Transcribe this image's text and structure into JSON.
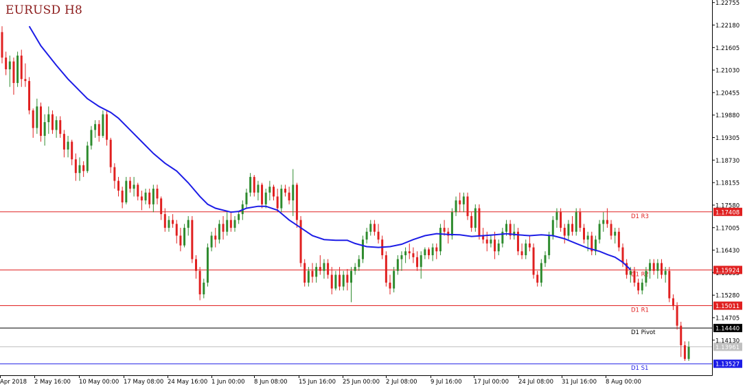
{
  "chart_data": {
    "type": "candlestick",
    "title": "EURUSD H8",
    "colors": {
      "bull": "#2e8b2e",
      "bear": "#e02020",
      "moving_average": "#1c1ce6",
      "resistance": "#e02020",
      "pivot": "#000000",
      "support": "#1c1ce6",
      "current_price": "#c0c0c0",
      "axis": "#000000"
    },
    "y_axis": {
      "range": [
        1.13233,
        1.2282
      ],
      "tick_labels": [
        "1.22755",
        "1.22180",
        "1.21605",
        "1.21030",
        "1.20455",
        "1.19880",
        "1.19305",
        "1.18730",
        "1.18155",
        "1.17580",
        "1.17005",
        "1.16430",
        "1.15855",
        "1.15280",
        "1.14705",
        "1.14130"
      ]
    },
    "x_axis": {
      "tick_labels": [
        "Apr 2018",
        "2 May 16:00",
        "10 May 00:00",
        "17 May 08:00",
        "24 May 16:00",
        "1 Jun 00:00",
        "8 Jun 08:00",
        "15 Jun 16:00",
        "25 Jun 00:00",
        "2 Jul 08:00",
        "9 Jul 16:00",
        "17 Jul 00:00",
        "24 Jul 08:00",
        "31 Jul 16:00",
        "8 Aug 00:00"
      ]
    },
    "levels": [
      {
        "name": "D1 R3",
        "value": 1.17408,
        "label": "1.17408",
        "kind": "resistance"
      },
      {
        "name": "D1 R2",
        "value": 1.15924,
        "label": "1.15924",
        "kind": "resistance"
      },
      {
        "name": "D1 R1",
        "value": 1.15011,
        "label": "1.15011",
        "kind": "resistance"
      },
      {
        "name": "D1 Pivot",
        "value": 1.1444,
        "label": "1.14440",
        "kind": "pivot"
      },
      {
        "name": "D1 S1",
        "value": 1.13527,
        "label": "1.13527",
        "kind": "support"
      }
    ],
    "current_price": {
      "value": 1.13961,
      "label": "1.13961"
    },
    "candles": [
      [
        1.22,
        1.2215,
        1.212,
        1.2135
      ],
      [
        1.2135,
        1.215,
        1.209,
        1.2105
      ],
      [
        1.2105,
        1.214,
        1.206,
        1.2125
      ],
      [
        1.2125,
        1.2135,
        1.204,
        1.207
      ],
      [
        1.207,
        1.215,
        1.206,
        1.214
      ],
      [
        1.214,
        1.2155,
        1.206,
        1.208
      ],
      [
        1.208,
        1.212,
        1.206,
        1.2075
      ],
      [
        1.2075,
        1.2085,
        1.199,
        1.2
      ],
      [
        1.2,
        1.2005,
        1.193,
        1.1955
      ],
      [
        1.1955,
        1.203,
        1.194,
        1.201
      ],
      [
        1.201,
        1.202,
        1.192,
        1.1935
      ],
      [
        1.1935,
        1.199,
        1.191,
        1.197
      ],
      [
        1.197,
        1.201,
        1.194,
        1.199
      ],
      [
        1.199,
        1.2,
        1.194,
        1.195
      ],
      [
        1.195,
        1.1985,
        1.193,
        1.1975
      ],
      [
        1.1975,
        1.1985,
        1.193,
        1.194
      ],
      [
        1.194,
        1.195,
        1.188,
        1.19
      ],
      [
        1.19,
        1.1935,
        1.188,
        1.192
      ],
      [
        1.192,
        1.1925,
        1.186,
        1.1875
      ],
      [
        1.1875,
        1.189,
        1.182,
        1.184
      ],
      [
        1.184,
        1.188,
        1.182,
        1.186
      ],
      [
        1.186,
        1.187,
        1.183,
        1.1845
      ],
      [
        1.1845,
        1.192,
        1.184,
        1.191
      ],
      [
        1.191,
        1.196,
        1.19,
        1.195
      ],
      [
        1.195,
        1.1975,
        1.193,
        1.1965
      ],
      [
        1.1965,
        1.1975,
        1.192,
        1.1935
      ],
      [
        1.1935,
        1.2,
        1.193,
        1.199
      ],
      [
        1.199,
        1.2,
        1.191,
        1.1925
      ],
      [
        1.1925,
        1.193,
        1.184,
        1.1855
      ],
      [
        1.1855,
        1.1865,
        1.18,
        1.182
      ],
      [
        1.182,
        1.183,
        1.178,
        1.1795
      ],
      [
        1.1795,
        1.1805,
        1.175,
        1.1765
      ],
      [
        1.1765,
        1.183,
        1.176,
        1.182
      ],
      [
        1.182,
        1.183,
        1.179,
        1.18
      ],
      [
        1.18,
        1.183,
        1.178,
        1.181
      ],
      [
        1.181,
        1.1815,
        1.177,
        1.178
      ],
      [
        1.178,
        1.1795,
        1.1745,
        1.177
      ],
      [
        1.177,
        1.18,
        1.176,
        1.179
      ],
      [
        1.179,
        1.18,
        1.175,
        1.176
      ],
      [
        1.176,
        1.181,
        1.174,
        1.18
      ],
      [
        1.18,
        1.181,
        1.176,
        1.1775
      ],
      [
        1.1775,
        1.178,
        1.172,
        1.1735
      ],
      [
        1.1735,
        1.175,
        1.169,
        1.17
      ],
      [
        1.17,
        1.173,
        1.169,
        1.172
      ],
      [
        1.172,
        1.1735,
        1.17,
        1.171
      ],
      [
        1.171,
        1.172,
        1.166,
        1.168
      ],
      [
        1.168,
        1.17,
        1.164,
        1.1655
      ],
      [
        1.1655,
        1.171,
        1.165,
        1.17
      ],
      [
        1.17,
        1.173,
        1.168,
        1.172
      ],
      [
        1.172,
        1.173,
        1.161,
        1.162
      ],
      [
        1.162,
        1.163,
        1.157,
        1.159
      ],
      [
        1.159,
        1.16,
        1.1515,
        1.153
      ],
      [
        1.153,
        1.157,
        1.152,
        1.156
      ],
      [
        1.156,
        1.166,
        1.155,
        1.165
      ],
      [
        1.165,
        1.169,
        1.164,
        1.168
      ],
      [
        1.168,
        1.17,
        1.165,
        1.167
      ],
      [
        1.167,
        1.172,
        1.166,
        1.171
      ],
      [
        1.171,
        1.173,
        1.167,
        1.169
      ],
      [
        1.169,
        1.174,
        1.168,
        1.172
      ],
      [
        1.172,
        1.174,
        1.169,
        1.17
      ],
      [
        1.17,
        1.173,
        1.169,
        1.172
      ],
      [
        1.172,
        1.174,
        1.171,
        1.1735
      ],
      [
        1.1735,
        1.177,
        1.172,
        1.176
      ],
      [
        1.176,
        1.18,
        1.175,
        1.179
      ],
      [
        1.179,
        1.184,
        1.178,
        1.183
      ],
      [
        1.183,
        1.1835,
        1.178,
        1.179
      ],
      [
        1.179,
        1.182,
        1.177,
        1.181
      ],
      [
        1.181,
        1.1815,
        1.175,
        1.176
      ],
      [
        1.176,
        1.18,
        1.175,
        1.179
      ],
      [
        1.179,
        1.182,
        1.177,
        1.1805
      ],
      [
        1.1805,
        1.181,
        1.177,
        1.178
      ],
      [
        1.178,
        1.18,
        1.174,
        1.175
      ],
      [
        1.175,
        1.181,
        1.174,
        1.18
      ],
      [
        1.18,
        1.181,
        1.178,
        1.179
      ],
      [
        1.179,
        1.1805,
        1.176,
        1.177
      ],
      [
        1.177,
        1.185,
        1.173,
        1.181
      ],
      [
        1.181,
        1.1815,
        1.17,
        1.172
      ],
      [
        1.172,
        1.173,
        1.16,
        1.161
      ],
      [
        1.161,
        1.162,
        1.155,
        1.156
      ],
      [
        1.156,
        1.16,
        1.155,
        1.159
      ],
      [
        1.159,
        1.161,
        1.156,
        1.1575
      ],
      [
        1.1575,
        1.161,
        1.156,
        1.16
      ],
      [
        1.16,
        1.163,
        1.158,
        1.159
      ],
      [
        1.159,
        1.162,
        1.157,
        1.161
      ],
      [
        1.161,
        1.162,
        1.157,
        1.158
      ],
      [
        1.158,
        1.16,
        1.153,
        1.1545
      ],
      [
        1.1545,
        1.159,
        1.154,
        1.158
      ],
      [
        1.158,
        1.16,
        1.154,
        1.155
      ],
      [
        1.155,
        1.159,
        1.154,
        1.158
      ],
      [
        1.158,
        1.1595,
        1.154,
        1.156
      ],
      [
        1.156,
        1.16,
        1.151,
        1.159
      ],
      [
        1.159,
        1.161,
        1.158,
        1.16
      ],
      [
        1.16,
        1.163,
        1.159,
        1.162
      ],
      [
        1.162,
        1.168,
        1.161,
        1.167
      ],
      [
        1.167,
        1.17,
        1.166,
        1.169
      ],
      [
        1.169,
        1.172,
        1.168,
        1.171
      ],
      [
        1.171,
        1.172,
        1.168,
        1.169
      ],
      [
        1.169,
        1.171,
        1.166,
        1.167
      ],
      [
        1.167,
        1.168,
        1.162,
        1.163
      ],
      [
        1.163,
        1.164,
        1.155,
        1.156
      ],
      [
        1.156,
        1.158,
        1.153,
        1.1545
      ],
      [
        1.1545,
        1.16,
        1.1535,
        1.159
      ],
      [
        1.159,
        1.163,
        1.158,
        1.162
      ],
      [
        1.162,
        1.164,
        1.159,
        1.163
      ],
      [
        1.163,
        1.165,
        1.161,
        1.164
      ],
      [
        1.164,
        1.166,
        1.162,
        1.1635
      ],
      [
        1.1635,
        1.165,
        1.161,
        1.1625
      ],
      [
        1.1625,
        1.164,
        1.159,
        1.16
      ],
      [
        1.16,
        1.164,
        1.157,
        1.163
      ],
      [
        1.163,
        1.165,
        1.162,
        1.1645
      ],
      [
        1.1645,
        1.165,
        1.162,
        1.163
      ],
      [
        1.163,
        1.166,
        1.1615,
        1.165
      ],
      [
        1.165,
        1.166,
        1.162,
        1.164
      ],
      [
        1.164,
        1.171,
        1.163,
        1.17
      ],
      [
        1.17,
        1.172,
        1.168,
        1.169
      ],
      [
        1.169,
        1.17,
        1.166,
        1.168
      ],
      [
        1.168,
        1.175,
        1.167,
        1.174
      ],
      [
        1.174,
        1.178,
        1.173,
        1.177
      ],
      [
        1.177,
        1.179,
        1.174,
        1.176
      ],
      [
        1.176,
        1.179,
        1.174,
        1.178
      ],
      [
        1.178,
        1.179,
        1.172,
        1.173
      ],
      [
        1.173,
        1.174,
        1.169,
        1.17
      ],
      [
        1.17,
        1.176,
        1.169,
        1.175
      ],
      [
        1.175,
        1.176,
        1.167,
        1.168
      ],
      [
        1.168,
        1.17,
        1.166,
        1.167
      ],
      [
        1.167,
        1.169,
        1.164,
        1.166
      ],
      [
        1.166,
        1.168,
        1.165,
        1.167
      ],
      [
        1.167,
        1.169,
        1.162,
        1.164
      ],
      [
        1.164,
        1.167,
        1.163,
        1.166
      ],
      [
        1.166,
        1.17,
        1.165,
        1.169
      ],
      [
        1.169,
        1.172,
        1.168,
        1.171
      ],
      [
        1.171,
        1.172,
        1.167,
        1.168
      ],
      [
        1.168,
        1.171,
        1.167,
        1.169
      ],
      [
        1.169,
        1.17,
        1.163,
        1.164
      ],
      [
        1.164,
        1.166,
        1.162,
        1.163
      ],
      [
        1.163,
        1.167,
        1.162,
        1.166
      ],
      [
        1.166,
        1.168,
        1.164,
        1.165
      ],
      [
        1.165,
        1.166,
        1.157,
        1.158
      ],
      [
        1.158,
        1.159,
        1.155,
        1.156
      ],
      [
        1.156,
        1.162,
        1.155,
        1.161
      ],
      [
        1.161,
        1.164,
        1.16,
        1.163
      ],
      [
        1.163,
        1.169,
        1.162,
        1.168
      ],
      [
        1.168,
        1.173,
        1.167,
        1.172
      ],
      [
        1.172,
        1.175,
        1.17,
        1.174
      ],
      [
        1.174,
        1.175,
        1.169,
        1.17
      ],
      [
        1.17,
        1.171,
        1.166,
        1.168
      ],
      [
        1.168,
        1.172,
        1.167,
        1.171
      ],
      [
        1.171,
        1.173,
        1.168,
        1.169
      ],
      [
        1.169,
        1.175,
        1.168,
        1.174
      ],
      [
        1.174,
        1.175,
        1.169,
        1.17
      ],
      [
        1.17,
        1.171,
        1.166,
        1.167
      ],
      [
        1.167,
        1.169,
        1.164,
        1.168
      ],
      [
        1.168,
        1.169,
        1.163,
        1.164
      ],
      [
        1.164,
        1.168,
        1.163,
        1.167
      ],
      [
        1.167,
        1.172,
        1.166,
        1.171
      ],
      [
        1.171,
        1.174,
        1.169,
        1.172
      ],
      [
        1.172,
        1.175,
        1.17,
        1.171
      ],
      [
        1.171,
        1.172,
        1.167,
        1.168
      ],
      [
        1.168,
        1.17,
        1.166,
        1.169
      ],
      [
        1.169,
        1.17,
        1.164,
        1.165
      ],
      [
        1.165,
        1.166,
        1.16,
        1.161
      ],
      [
        1.161,
        1.162,
        1.157,
        1.158
      ],
      [
        1.158,
        1.16,
        1.156,
        1.159
      ],
      [
        1.159,
        1.16,
        1.155,
        1.156
      ],
      [
        1.156,
        1.157,
        1.153,
        1.154
      ],
      [
        1.154,
        1.157,
        1.153,
        1.156
      ],
      [
        1.156,
        1.16,
        1.155,
        1.159
      ],
      [
        1.159,
        1.162,
        1.157,
        1.161
      ],
      [
        1.161,
        1.162,
        1.158,
        1.159
      ],
      [
        1.159,
        1.162,
        1.157,
        1.161
      ],
      [
        1.161,
        1.162,
        1.157,
        1.158
      ],
      [
        1.158,
        1.16,
        1.156,
        1.159
      ],
      [
        1.159,
        1.16,
        1.151,
        1.152
      ],
      [
        1.152,
        1.153,
        1.149,
        1.15
      ],
      [
        1.15,
        1.151,
        1.144,
        1.145
      ],
      [
        1.145,
        1.146,
        1.137,
        1.14
      ],
      [
        1.14,
        1.141,
        1.136,
        1.1365
      ],
      [
        1.1365,
        1.141,
        1.136,
        1.1396
      ]
    ],
    "moving_average": [
      [
        7,
        1.2215
      ],
      [
        10,
        1.2165
      ],
      [
        14,
        1.2115
      ],
      [
        17,
        1.208
      ],
      [
        20,
        1.205
      ],
      [
        22,
        1.203
      ],
      [
        25,
        1.201
      ],
      [
        28,
        1.1995
      ],
      [
        30,
        1.198
      ],
      [
        33,
        1.195
      ],
      [
        36,
        1.192
      ],
      [
        39,
        1.189
      ],
      [
        42,
        1.1865
      ],
      [
        45,
        1.1845
      ],
      [
        48,
        1.1815
      ],
      [
        51,
        1.178
      ],
      [
        53,
        1.176
      ],
      [
        55,
        1.175
      ],
      [
        57,
        1.1745
      ],
      [
        59,
        1.174
      ],
      [
        61,
        1.1742
      ],
      [
        63,
        1.175
      ],
      [
        66,
        1.1755
      ],
      [
        68,
        1.1755
      ],
      [
        71,
        1.1745
      ],
      [
        74,
        1.172
      ],
      [
        77,
        1.17
      ],
      [
        80,
        1.168
      ],
      [
        83,
        1.167
      ],
      [
        86,
        1.1668
      ],
      [
        89,
        1.1668
      ],
      [
        91,
        1.166
      ],
      [
        94,
        1.1652
      ],
      [
        97,
        1.165
      ],
      [
        100,
        1.1652
      ],
      [
        103,
        1.1658
      ],
      [
        106,
        1.167
      ],
      [
        109,
        1.168
      ],
      [
        112,
        1.1685
      ],
      [
        115,
        1.1683
      ],
      [
        118,
        1.1682
      ],
      [
        121,
        1.1678
      ],
      [
        124,
        1.168
      ],
      [
        127,
        1.1682
      ],
      [
        130,
        1.1685
      ],
      [
        133,
        1.1682
      ],
      [
        136,
        1.168
      ],
      [
        139,
        1.1682
      ],
      [
        142,
        1.168
      ],
      [
        145,
        1.1672
      ],
      [
        148,
        1.166
      ],
      [
        151,
        1.1648
      ],
      [
        154,
        1.164
      ],
      [
        156,
        1.1632
      ],
      [
        158,
        1.1625
      ],
      [
        160,
        1.1612
      ],
      [
        162,
        1.1593
      ]
    ]
  }
}
